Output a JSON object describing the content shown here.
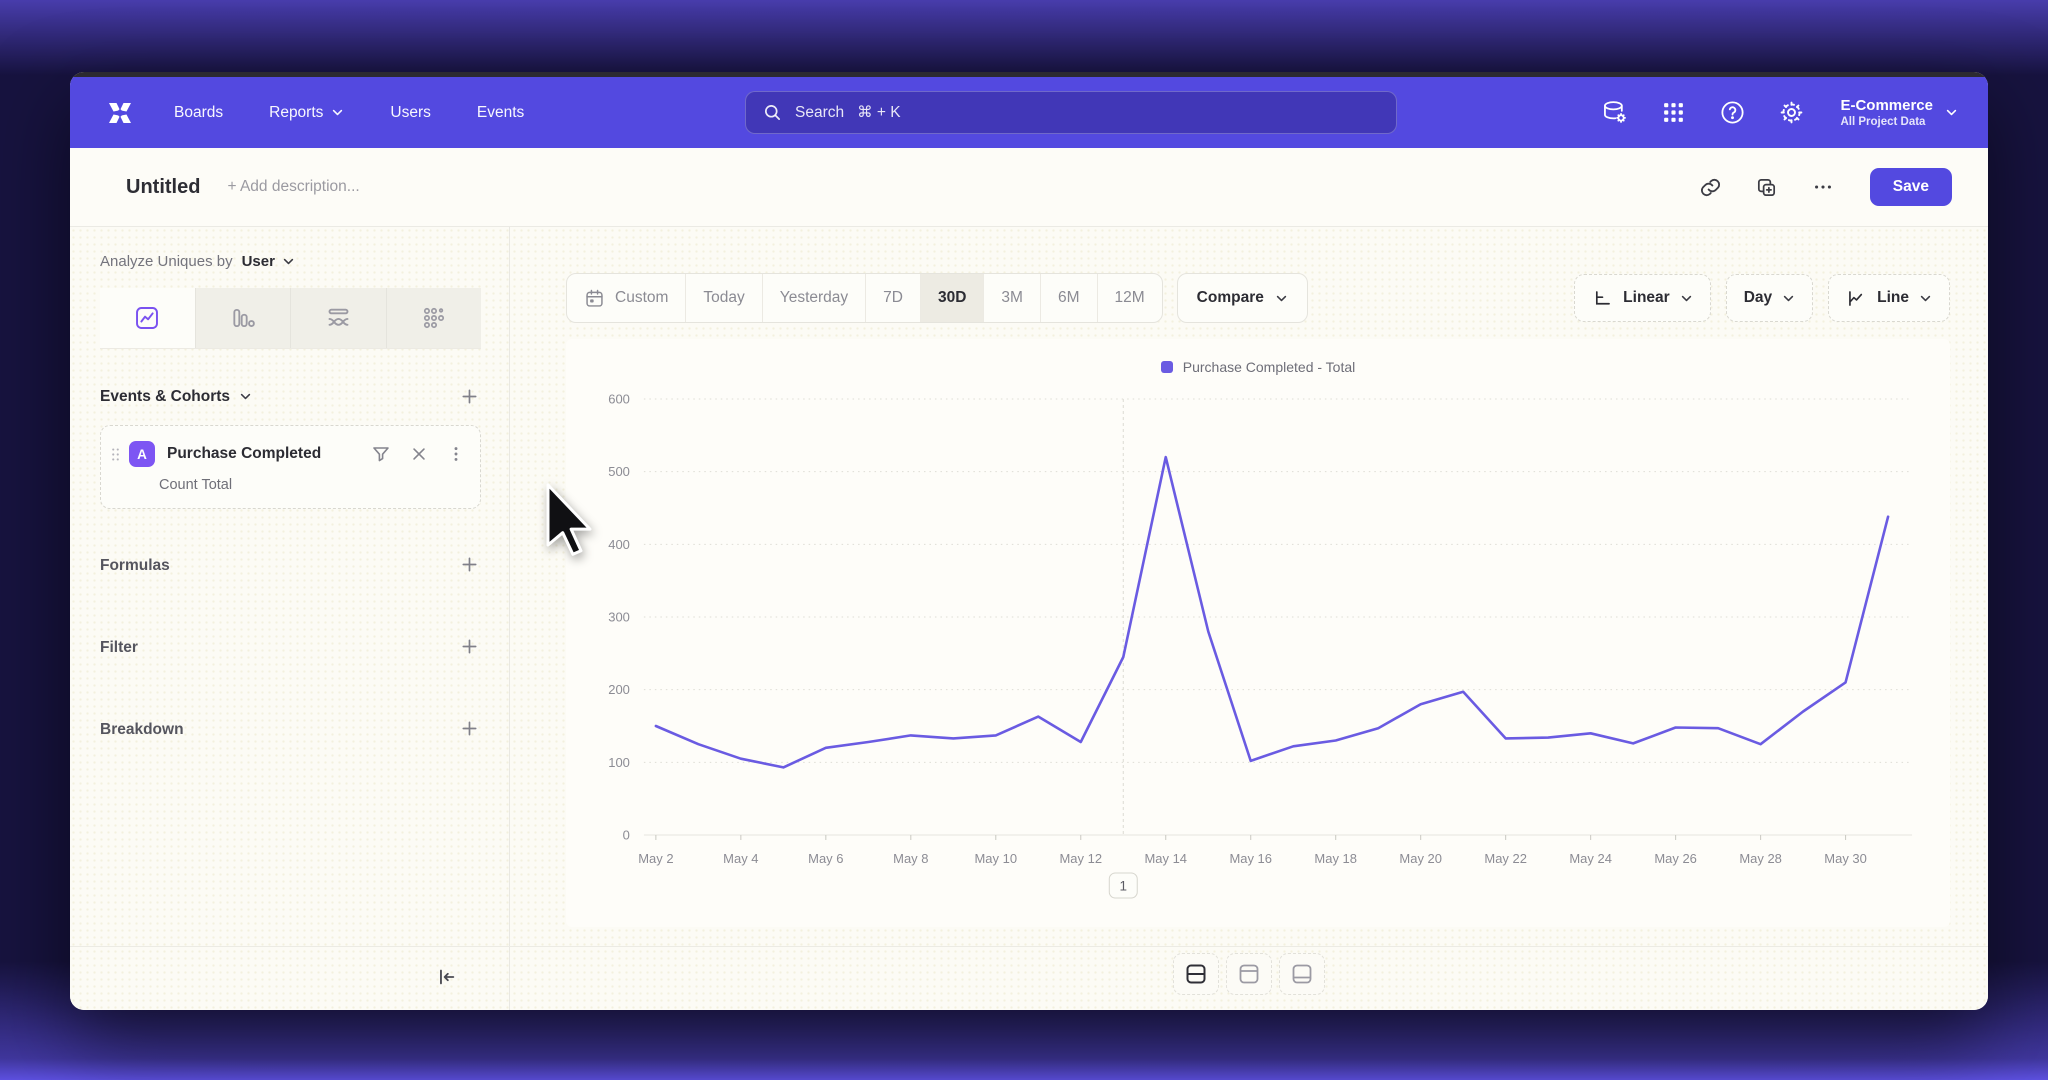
{
  "nav": {
    "items": [
      {
        "label": "Boards",
        "chevron": false
      },
      {
        "label": "Reports",
        "chevron": true
      },
      {
        "label": "Users",
        "chevron": false
      },
      {
        "label": "Events",
        "chevron": false
      }
    ],
    "search": {
      "placeholder": "Search",
      "shortcut": "⌘ + K"
    },
    "icons": [
      "data-management-icon",
      "apps-grid-icon",
      "help-icon",
      "settings-gear-icon"
    ],
    "project": {
      "name": "E-Commerce",
      "subtitle": "All Project Data"
    }
  },
  "header": {
    "title": "Untitled",
    "description_placeholder": "+ Add description...",
    "actions": [
      "link-icon",
      "duplicate-icon",
      "more-icon"
    ],
    "save_label": "Save"
  },
  "sidebar": {
    "analyze_label": "Analyze Uniques by",
    "analyze_value": "User",
    "tabs": [
      "insights",
      "bar",
      "flow",
      "retention"
    ],
    "active_tab": "insights",
    "events_section_title": "Events & Cohorts",
    "event_card": {
      "badge": "A",
      "name": "Purchase Completed",
      "metric": "Count Total",
      "icons": [
        "filter-icon",
        "remove-icon",
        "more-icon"
      ]
    },
    "sections": [
      {
        "label": "Formulas"
      },
      {
        "label": "Filter"
      },
      {
        "label": "Breakdown"
      }
    ]
  },
  "toolbar": {
    "ranges": [
      "Custom",
      "Today",
      "Yesterday",
      "7D",
      "30D",
      "3M",
      "6M",
      "12M"
    ],
    "active_range": "30D",
    "compare_label": "Compare",
    "scale_label": "Linear",
    "interval_label": "Day",
    "chart_type_label": "Line"
  },
  "chart_data": {
    "type": "line",
    "legend": [
      {
        "label": "Purchase Completed - Total",
        "color": "#6A5BE2"
      }
    ],
    "x": [
      "May 2",
      "May 3",
      "May 4",
      "May 5",
      "May 6",
      "May 7",
      "May 8",
      "May 9",
      "May 10",
      "May 11",
      "May 12",
      "May 13",
      "May 14",
      "May 15",
      "May 16",
      "May 17",
      "May 18",
      "May 19",
      "May 20",
      "May 21",
      "May 22",
      "May 23",
      "May 24",
      "May 25",
      "May 26",
      "May 27",
      "May 28",
      "May 29",
      "May 30",
      "May 31"
    ],
    "x_tick_interval": 2,
    "series": [
      {
        "name": "Purchase Completed - Total",
        "color": "#6A5BE2",
        "values": [
          150,
          125,
          105,
          93,
          120,
          128,
          137,
          133,
          137,
          163,
          128,
          245,
          520,
          280,
          102,
          122,
          130,
          147,
          180,
          197,
          133,
          134,
          140,
          126,
          148,
          147,
          125,
          170,
          210,
          438
        ]
      }
    ],
    "ylim": [
      0,
      600
    ],
    "y_ticks": [
      0,
      100,
      200,
      300,
      400,
      500,
      600
    ],
    "grid": "dotted-horizontal",
    "legend_position": "top-center",
    "annotations": [
      {
        "label": "1",
        "x": "May 13"
      }
    ]
  },
  "footer": {
    "layouts": [
      "split-horizontal",
      "panel-top",
      "panel-bottom"
    ],
    "active_layout": "split-horizontal"
  },
  "colors": {
    "nav_purple": "#5349E0",
    "accent": "#5349E0",
    "line": "#6A5BE2",
    "event_badge": "#7D55F3"
  }
}
